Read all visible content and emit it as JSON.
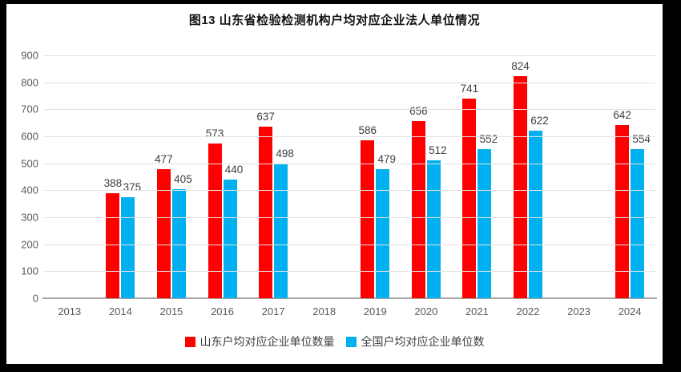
{
  "title": "图13 山东省检验检测机构户均对应企业法人单位情况",
  "frame": {
    "background": "#000000",
    "inner_background": "#ffffff"
  },
  "chart_data": {
    "type": "bar",
    "title": "图13 山东省检验检测机构户均对应企业法人单位情况",
    "categories": [
      "2013",
      "2014",
      "2015",
      "2016",
      "2017",
      "2018",
      "2019",
      "2020",
      "2021",
      "2022",
      "2023",
      "2024"
    ],
    "series": [
      {
        "name": "山东户均对应企业单位数量",
        "color": "#ff0000",
        "values": [
          null,
          388,
          477,
          573,
          637,
          null,
          586,
          656,
          741,
          824,
          null,
          642
        ]
      },
      {
        "name": "全国户均对应企业单位数",
        "color": "#00b0f0",
        "values": [
          null,
          375,
          405,
          440,
          498,
          null,
          479,
          512,
          552,
          622,
          null,
          554
        ]
      }
    ],
    "ylim": [
      0,
      900
    ],
    "ytick_step": 100,
    "yticks": [
      0,
      100,
      200,
      300,
      400,
      500,
      600,
      700,
      800,
      900
    ],
    "grid": true,
    "gridline_color": "#e2e2e2",
    "axis_line_color": "#a6a6a6",
    "tick_label_color": "#595959",
    "data_label_color": "#404040",
    "legend_position": "bottom",
    "data_labels": true
  }
}
